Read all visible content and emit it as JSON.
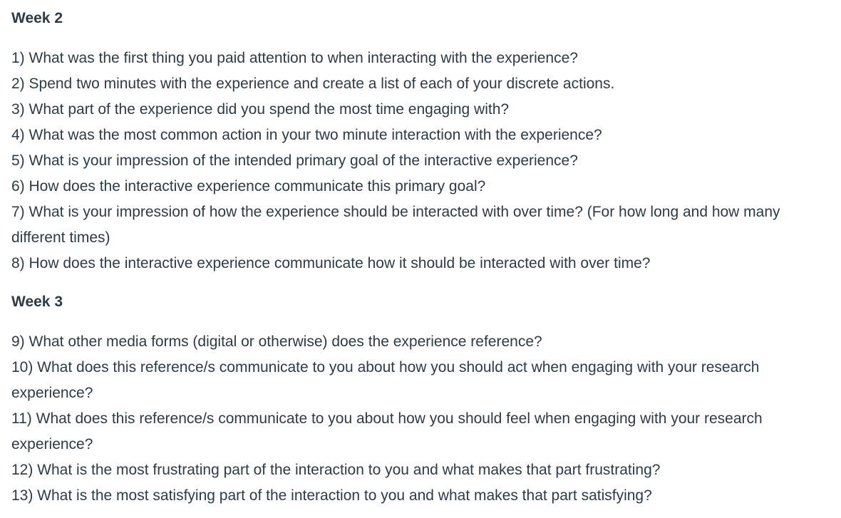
{
  "sections": [
    {
      "heading": "Week 2",
      "questions": [
        "1) What was the first thing you paid attention to when interacting with the experience?",
        "2) Spend two minutes with the experience and create a list of each of your discrete actions.",
        "3) What part of the experience did you spend the most time engaging with?",
        "4) What was the most common action in your two minute interaction with the experience?",
        "5) What is your impression of the intended primary goal of the interactive experience?",
        "6) How does the interactive experience communicate this primary goal?",
        "7) What is your impression of how the experience should be interacted with over time? (For how long and how many different times)",
        "8) How does the interactive experience communicate how it should be interacted with over time?"
      ]
    },
    {
      "heading": "Week 3",
      "questions": [
        "9) What other media forms (digital or otherwise) does the experience reference?",
        "10) What does this reference/s communicate to you about how you should act when engaging with your research experience?",
        "11) What does this reference/s communicate to you about how you should feel when engaging with your research experience?",
        "12) What is the most frustrating part of the interaction to you and what makes that part frustrating?",
        "13) What is the most satisfying part of the interaction to you and what makes that part satisfying?"
      ]
    }
  ]
}
